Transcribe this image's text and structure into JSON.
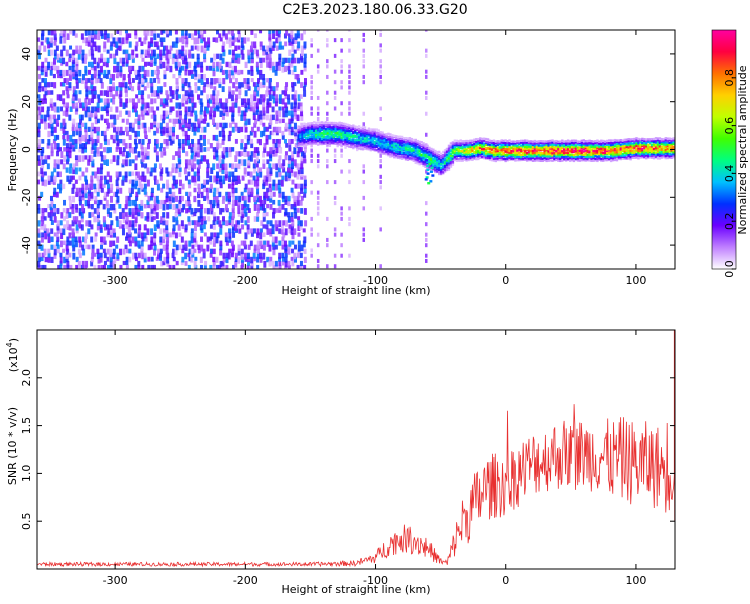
{
  "title": "C2E3.2023.180.06.33.G20",
  "chart_data": [
    {
      "type": "heatmap",
      "xlabel": "Height of straight line (km)",
      "ylabel": "Frequency (Hz)",
      "xlim": [
        -360,
        130
      ],
      "ylim": [
        -50,
        50
      ],
      "xticks": [
        -300,
        -200,
        -100,
        0,
        100
      ],
      "yticks": [
        -40,
        -20,
        0,
        20,
        40
      ],
      "colorbar": {
        "label": "Normalized spectral amplitude",
        "range": [
          0,
          1
        ],
        "ticks": [
          "0.0",
          "0.2",
          "0.4",
          "0.6",
          "0.8"
        ],
        "colors": [
          "#ffffff",
          "#c080ff",
          "#6a00ff",
          "#0030ff",
          "#00c0ff",
          "#00ff80",
          "#40ff00",
          "#c0ff00",
          "#ffd000",
          "#ff7000",
          "#ff0040",
          "#ff00a0"
        ]
      },
      "ridge": {
        "x": [
          -160,
          -150,
          -140,
          -130,
          -120,
          -110,
          -100,
          -90,
          -80,
          -70,
          -60,
          -50,
          -40,
          -30,
          -20,
          -10,
          0,
          20,
          40,
          60,
          80,
          100,
          120,
          130
        ],
        "freq": [
          6,
          7,
          7,
          7,
          6,
          5,
          4,
          2,
          1,
          0,
          -3,
          -6,
          0,
          0,
          1,
          0,
          0,
          0,
          0,
          0,
          0,
          1,
          1,
          1
        ],
        "amplitude": [
          0.3,
          0.45,
          0.5,
          0.5,
          0.45,
          0.4,
          0.4,
          0.4,
          0.45,
          0.45,
          0.5,
          0.4,
          0.6,
          0.7,
          0.8,
          0.85,
          0.9,
          0.95,
          0.95,
          0.95,
          0.9,
          0.9,
          0.85,
          0.85
        ]
      },
      "noise_region_x": [
        -360,
        -155
      ]
    },
    {
      "type": "line",
      "xlabel": "Height of straight line (km)",
      "ylabel": "SNR (10 * v/v)",
      "scale_label": "(x10",
      "scale_exp": "4",
      "scale_close": ")",
      "xlim": [
        -360,
        130
      ],
      "ylim": [
        0,
        2.5
      ],
      "xticks": [
        -300,
        -200,
        -100,
        0,
        100
      ],
      "yticks": [
        "0.5",
        "1.0",
        "1.5",
        "2.0"
      ],
      "color": "#e83030",
      "envelope_x": [
        -360,
        -250,
        -150,
        -115,
        -100,
        -90,
        -80,
        -70,
        -60,
        -50,
        -45,
        -40,
        -35,
        -25,
        -15,
        0,
        10,
        20,
        30,
        40,
        50,
        60,
        70,
        80,
        90,
        100,
        110,
        120,
        125,
        130
      ],
      "envelope_mean": [
        0.05,
        0.05,
        0.05,
        0.06,
        0.12,
        0.25,
        0.32,
        0.3,
        0.22,
        0.08,
        0.06,
        0.25,
        0.45,
        0.65,
        0.85,
        0.9,
        1.0,
        1.1,
        1.15,
        1.2,
        1.2,
        1.2,
        1.2,
        1.15,
        1.15,
        1.1,
        1.1,
        1.05,
        1.1,
        1.15
      ],
      "envelope_amp": [
        0.02,
        0.02,
        0.02,
        0.03,
        0.06,
        0.12,
        0.15,
        0.15,
        0.12,
        0.04,
        0.04,
        0.15,
        0.25,
        0.35,
        0.35,
        0.35,
        0.35,
        0.35,
        0.35,
        0.38,
        0.38,
        0.38,
        0.4,
        0.42,
        0.45,
        0.45,
        0.45,
        0.45,
        0.55,
        0.6
      ]
    }
  ]
}
